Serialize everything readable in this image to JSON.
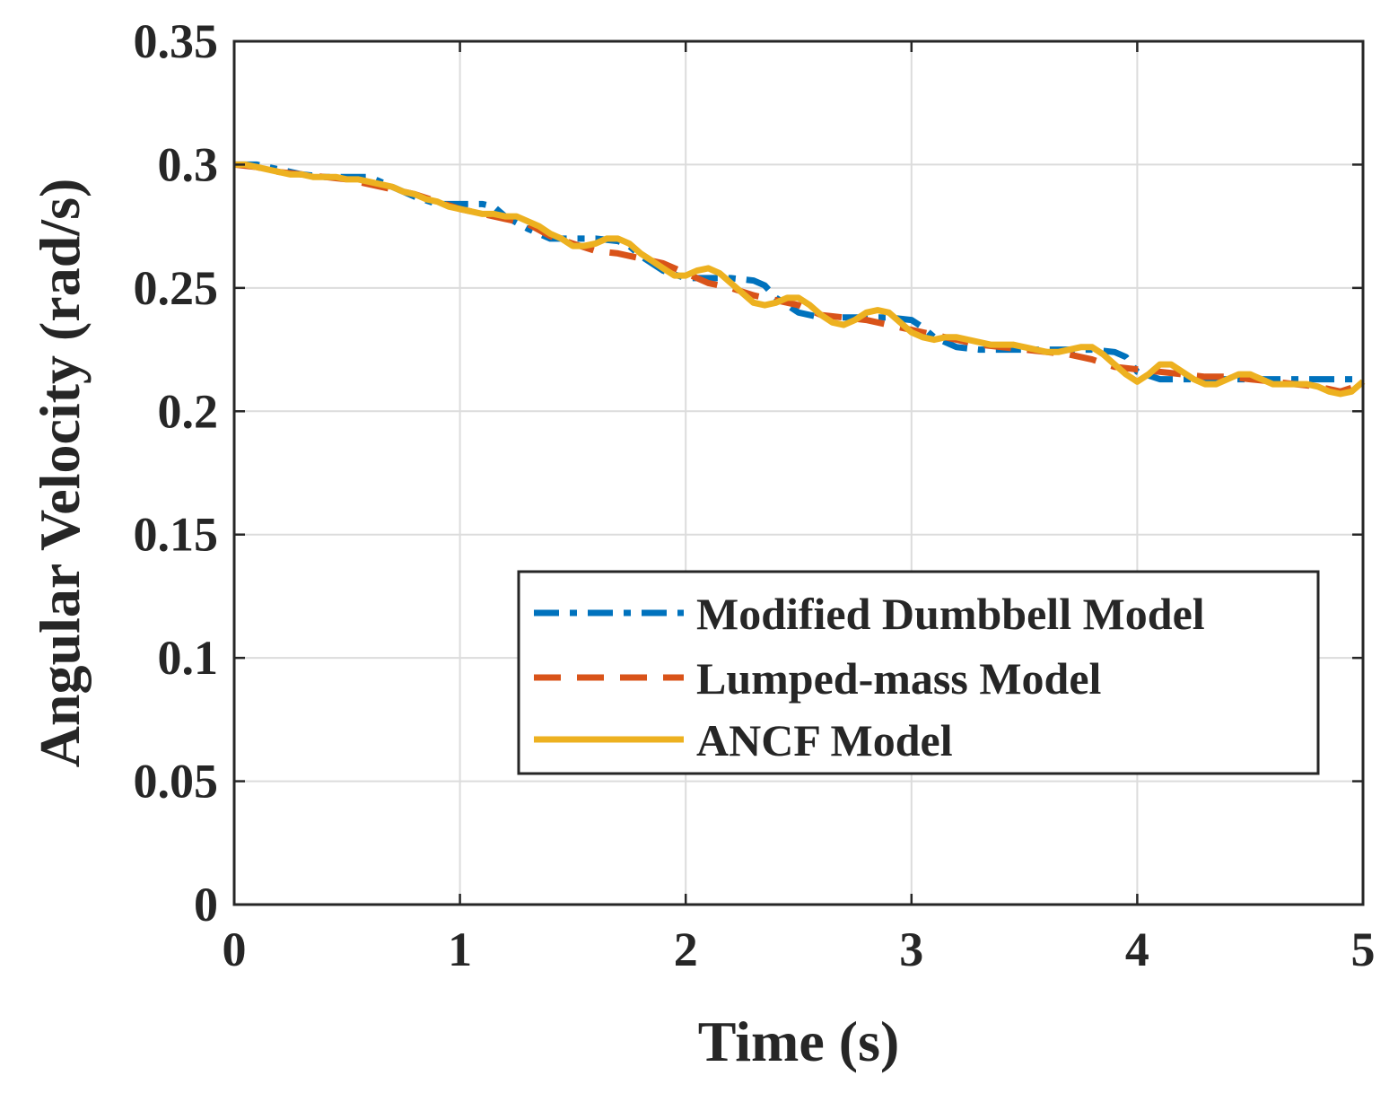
{
  "chart_data": {
    "type": "line",
    "title": "",
    "xlabel": "Time (s)",
    "ylabel": "Angular Velocity (rad/s)",
    "xlim": [
      0,
      5
    ],
    "ylim": [
      0,
      0.35
    ],
    "xticks": [
      0,
      1,
      2,
      3,
      4,
      5
    ],
    "xtick_labels": [
      "0",
      "1",
      "2",
      "3",
      "4",
      "5"
    ],
    "yticks": [
      0,
      0.05,
      0.1,
      0.15,
      0.2,
      0.25,
      0.3,
      0.35
    ],
    "ytick_labels": [
      "0",
      "0.05",
      "0.1",
      "0.15",
      "0.2",
      "0.25",
      "0.3",
      "0.35"
    ],
    "grid": true,
    "legend_position": "lower-right",
    "series": [
      {
        "name": "Modified Dumbbell Model",
        "color": "#0072BD",
        "style": "dash-dot",
        "x": [
          0,
          0.1,
          0.2,
          0.3,
          0.4,
          0.5,
          0.6,
          0.7,
          0.8,
          0.9,
          1.0,
          1.1,
          1.15,
          1.2,
          1.3,
          1.4,
          1.5,
          1.6,
          1.7,
          1.75,
          1.8,
          1.9,
          2.0,
          2.1,
          2.2,
          2.3,
          2.35,
          2.4,
          2.5,
          2.6,
          2.7,
          2.8,
          2.9,
          3.0,
          3.05,
          3.1,
          3.2,
          3.3,
          3.4,
          3.5,
          3.6,
          3.7,
          3.8,
          3.9,
          3.95,
          4.0,
          4.1,
          4.2,
          4.3,
          4.4,
          4.5,
          4.6,
          4.7,
          4.8,
          4.9,
          5.0
        ],
        "y": [
          0.3,
          0.3,
          0.298,
          0.296,
          0.295,
          0.295,
          0.295,
          0.291,
          0.287,
          0.284,
          0.284,
          0.284,
          0.283,
          0.279,
          0.274,
          0.27,
          0.27,
          0.27,
          0.269,
          0.267,
          0.263,
          0.257,
          0.254,
          0.254,
          0.254,
          0.253,
          0.251,
          0.246,
          0.24,
          0.238,
          0.238,
          0.238,
          0.238,
          0.237,
          0.234,
          0.23,
          0.226,
          0.225,
          0.225,
          0.225,
          0.225,
          0.225,
          0.225,
          0.224,
          0.222,
          0.216,
          0.213,
          0.213,
          0.213,
          0.213,
          0.213,
          0.213,
          0.213,
          0.213,
          0.213,
          0.213
        ]
      },
      {
        "name": "Lumped-mass Model",
        "color": "#D95319",
        "style": "dashed",
        "x": [
          0,
          0.1,
          0.2,
          0.3,
          0.4,
          0.5,
          0.6,
          0.7,
          0.8,
          0.9,
          1.0,
          1.1,
          1.2,
          1.3,
          1.4,
          1.5,
          1.6,
          1.7,
          1.8,
          1.9,
          2.0,
          2.1,
          2.2,
          2.3,
          2.4,
          2.5,
          2.6,
          2.7,
          2.8,
          2.9,
          3.0,
          3.1,
          3.2,
          3.3,
          3.4,
          3.5,
          3.6,
          3.7,
          3.8,
          3.9,
          4.0,
          4.1,
          4.2,
          4.3,
          4.4,
          4.5,
          4.6,
          4.7,
          4.8,
          4.9,
          5.0
        ],
        "y": [
          0.3,
          0.299,
          0.297,
          0.296,
          0.295,
          0.294,
          0.292,
          0.29,
          0.288,
          0.285,
          0.282,
          0.28,
          0.278,
          0.276,
          0.271,
          0.268,
          0.265,
          0.264,
          0.262,
          0.26,
          0.256,
          0.252,
          0.25,
          0.247,
          0.245,
          0.243,
          0.239,
          0.238,
          0.237,
          0.235,
          0.233,
          0.231,
          0.229,
          0.227,
          0.226,
          0.225,
          0.224,
          0.223,
          0.221,
          0.218,
          0.217,
          0.216,
          0.215,
          0.214,
          0.214,
          0.213,
          0.212,
          0.211,
          0.21,
          0.208,
          0.211
        ]
      },
      {
        "name": "ANCF Model",
        "color": "#EDB120",
        "style": "solid",
        "x": [
          0,
          0.05,
          0.1,
          0.15,
          0.2,
          0.25,
          0.3,
          0.35,
          0.4,
          0.45,
          0.5,
          0.55,
          0.6,
          0.65,
          0.7,
          0.75,
          0.8,
          0.85,
          0.9,
          0.95,
          1.0,
          1.05,
          1.1,
          1.15,
          1.2,
          1.25,
          1.3,
          1.35,
          1.4,
          1.45,
          1.5,
          1.55,
          1.6,
          1.65,
          1.7,
          1.75,
          1.8,
          1.85,
          1.9,
          1.95,
          2.0,
          2.05,
          2.1,
          2.15,
          2.2,
          2.25,
          2.3,
          2.35,
          2.4,
          2.45,
          2.5,
          2.55,
          2.6,
          2.65,
          2.7,
          2.75,
          2.8,
          2.85,
          2.9,
          2.95,
          3.0,
          3.05,
          3.1,
          3.15,
          3.2,
          3.25,
          3.3,
          3.35,
          3.4,
          3.45,
          3.5,
          3.55,
          3.6,
          3.65,
          3.7,
          3.75,
          3.8,
          3.85,
          3.9,
          3.95,
          4.0,
          4.05,
          4.1,
          4.15,
          4.2,
          4.25,
          4.3,
          4.35,
          4.4,
          4.45,
          4.5,
          4.55,
          4.6,
          4.65,
          4.7,
          4.75,
          4.8,
          4.85,
          4.9,
          4.95,
          5.0
        ],
        "y": [
          0.3,
          0.3,
          0.299,
          0.298,
          0.297,
          0.296,
          0.296,
          0.295,
          0.295,
          0.295,
          0.294,
          0.294,
          0.293,
          0.292,
          0.291,
          0.289,
          0.288,
          0.286,
          0.285,
          0.283,
          0.282,
          0.281,
          0.28,
          0.28,
          0.279,
          0.279,
          0.277,
          0.275,
          0.272,
          0.27,
          0.267,
          0.267,
          0.268,
          0.27,
          0.27,
          0.268,
          0.264,
          0.261,
          0.258,
          0.255,
          0.255,
          0.257,
          0.258,
          0.256,
          0.252,
          0.248,
          0.244,
          0.243,
          0.244,
          0.246,
          0.246,
          0.243,
          0.239,
          0.236,
          0.235,
          0.237,
          0.24,
          0.241,
          0.24,
          0.236,
          0.232,
          0.23,
          0.229,
          0.23,
          0.23,
          0.229,
          0.228,
          0.227,
          0.227,
          0.227,
          0.226,
          0.225,
          0.224,
          0.224,
          0.225,
          0.226,
          0.226,
          0.223,
          0.219,
          0.215,
          0.212,
          0.215,
          0.219,
          0.219,
          0.216,
          0.213,
          0.211,
          0.211,
          0.213,
          0.215,
          0.215,
          0.213,
          0.211,
          0.211,
          0.211,
          0.211,
          0.21,
          0.208,
          0.207,
          0.208,
          0.212
        ]
      }
    ]
  }
}
